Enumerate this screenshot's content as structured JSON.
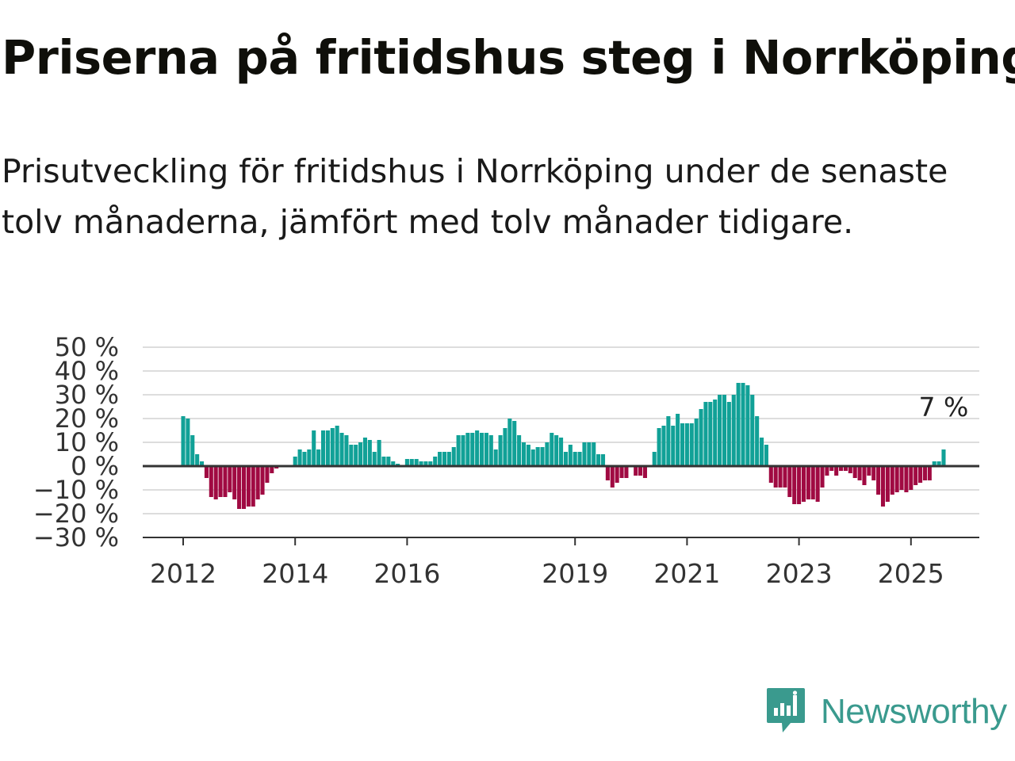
{
  "title": "Priserna på fritidshus steg i Norrköping",
  "subtitle": "Prisutveckling för fritidshus i Norrköping under de senaste tolv månaderna, jämfört med tolv månader tidigare.",
  "brand": {
    "name": "Newsworthy",
    "icon": "newsworthy-logo-icon",
    "color": "#3a9a8e"
  },
  "chart_data": {
    "type": "bar",
    "title": "",
    "xlabel": "",
    "ylabel": "",
    "ylim": [
      -30,
      50
    ],
    "y_ticks": [
      50,
      40,
      30,
      20,
      10,
      0,
      -10,
      -20,
      -30
    ],
    "y_tick_labels": [
      "50 %",
      "40 %",
      "30 %",
      "20 %",
      "10 %",
      "0 %",
      "−10 %",
      "−20 %",
      "−30 %"
    ],
    "x_ticks": [
      2012,
      2014,
      2016,
      2019,
      2021,
      2023,
      2025
    ],
    "x_tick_labels": [
      "2012",
      "2014",
      "2016",
      "2019",
      "2021",
      "2023",
      "2025"
    ],
    "grid": true,
    "positive_color": "#11a197",
    "negative_color": "#a00a42",
    "end_label": "7 %",
    "series": [
      {
        "start": "2012-01",
        "frequency": "monthly",
        "values": [
          21,
          20,
          13,
          5,
          2,
          -5,
          -13,
          -14,
          -13,
          -13,
          -11,
          -14,
          -18,
          -18,
          -17,
          -17,
          -14,
          -12,
          -7,
          -3,
          -1,
          0,
          0,
          0,
          4,
          7,
          6,
          7,
          15,
          7,
          15,
          15,
          16,
          17,
          14,
          13,
          9,
          9,
          10,
          12,
          11,
          6,
          11,
          4,
          4,
          2,
          1,
          0,
          3,
          3,
          3,
          2,
          2,
          2,
          4,
          6,
          6,
          6,
          8,
          13,
          13,
          14,
          14,
          15,
          14,
          14,
          13,
          7,
          13,
          16,
          20,
          19,
          13,
          10,
          9,
          7,
          8,
          8,
          10,
          14,
          13,
          12,
          6,
          9,
          6,
          6,
          10,
          10,
          10,
          5,
          5,
          -6,
          -9,
          -7,
          -5,
          -5,
          0,
          -4,
          -4,
          -5,
          0,
          6,
          16,
          17,
          21,
          17,
          22,
          18,
          18,
          18,
          20,
          24,
          27,
          27,
          28,
          30,
          30,
          27,
          30,
          35,
          35,
          34,
          30,
          21,
          12,
          9,
          -7,
          -9,
          -9,
          -9,
          -13,
          -16,
          -16,
          -15,
          -14,
          -14,
          -15,
          -9,
          -4,
          -2,
          -4,
          -2,
          -2,
          -3,
          -5,
          -6,
          -8,
          -4,
          -6,
          -12,
          -17,
          -15,
          -12,
          -11,
          -10,
          -11,
          -10,
          -8,
          -7,
          -6,
          -6,
          2,
          2,
          7
        ]
      }
    ]
  }
}
